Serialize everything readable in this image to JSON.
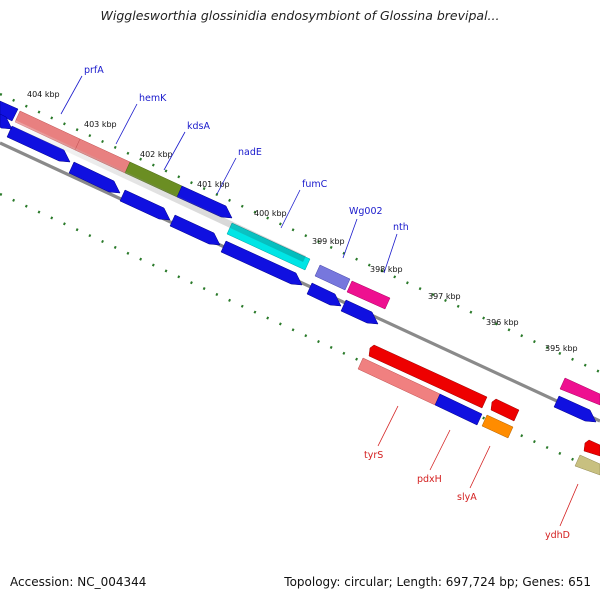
{
  "title": "Wigglesworthia glossinidia endosymbiont of Glossina brevipal...",
  "footer": {
    "accession": "Accession: NC_004344",
    "summary": "Topology: circular; Length: 697,724 bp; Genes: 651"
  },
  "colors": {
    "forward_label": "#1a1acc",
    "reverse_label": "#d42020",
    "backbone": "#8a8a8a",
    "ticks": "#2a7a2a",
    "generic_gene": "#1010e0"
  },
  "kbp_markers": [
    "404 kbp",
    "403 kbp",
    "402 kbp",
    "401 kbp",
    "400 kbp",
    "399 kbp",
    "398 kbp",
    "397 kbp",
    "396 kbp",
    "395 kbp"
  ],
  "forward_genes": [
    "prfA",
    "hemK",
    "kdsA",
    "nadE",
    "fumC",
    "Wg002",
    "nth"
  ],
  "reverse_genes": [
    "tyrS",
    "pdxH",
    "slyA",
    "ydhD"
  ]
}
